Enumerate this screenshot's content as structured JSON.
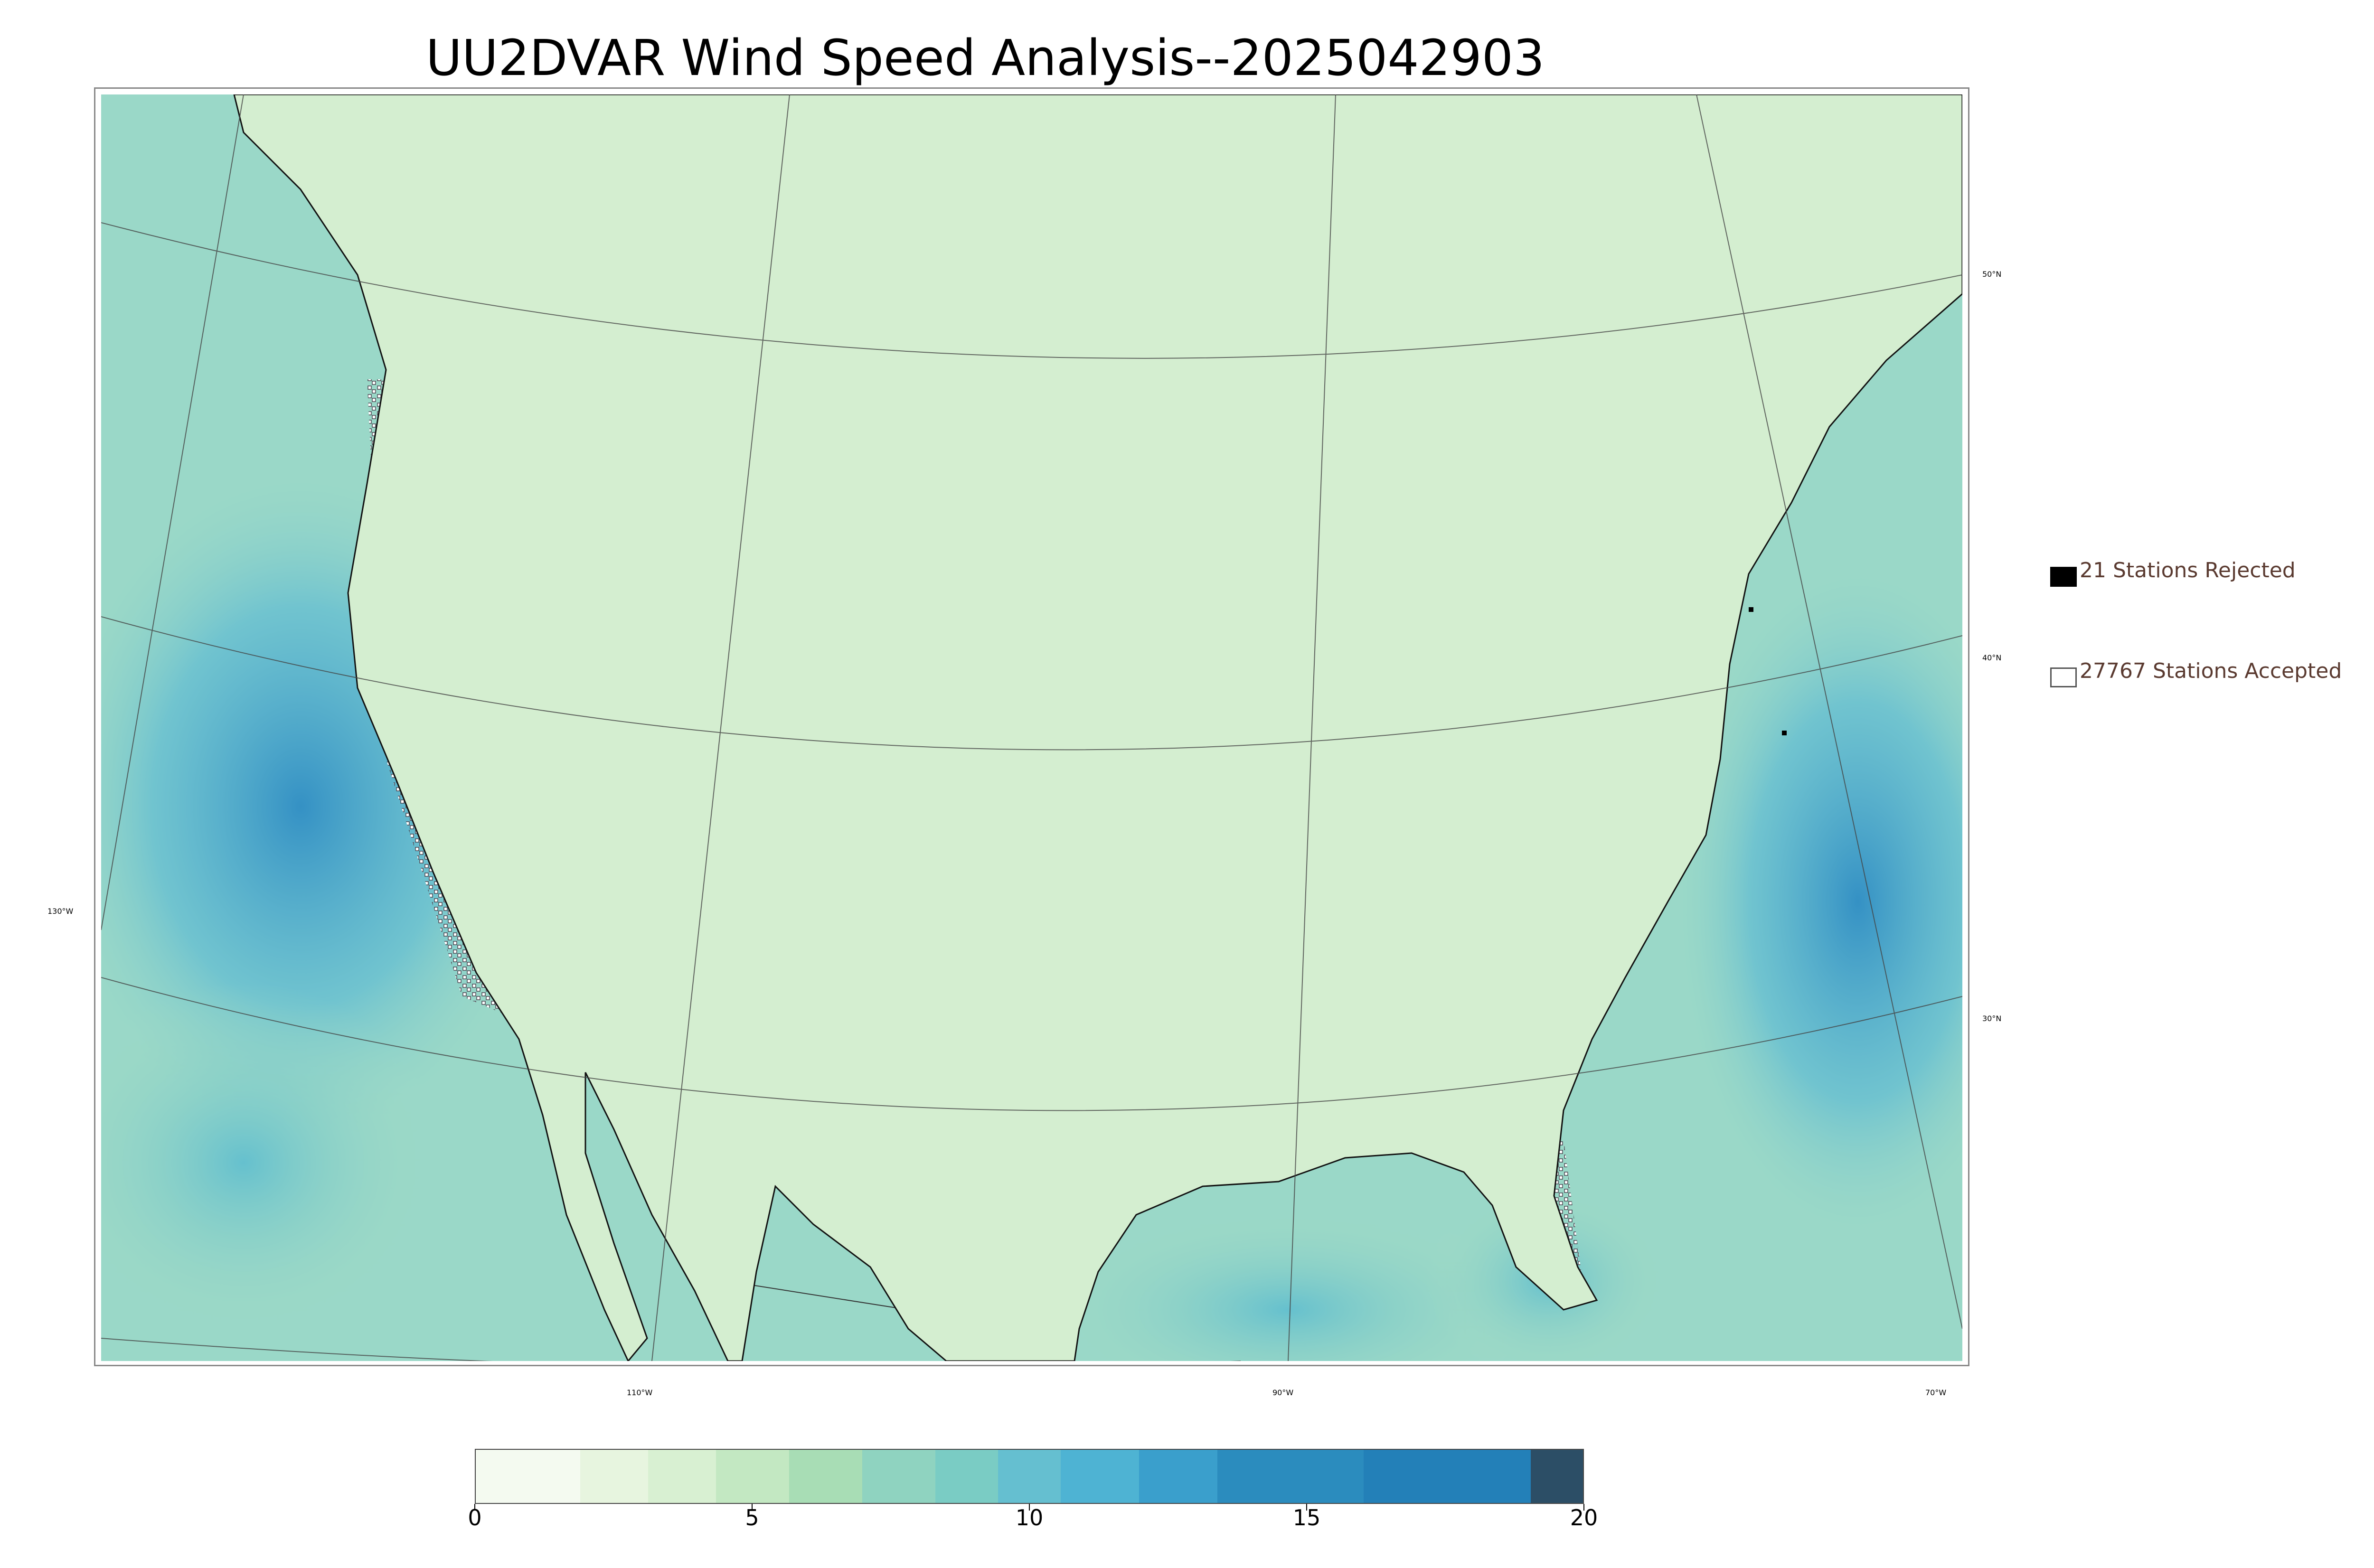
{
  "title": "UU2DVAR Wind Speed Analysis--2025042903",
  "map": {
    "longitude_labels": [
      "130°W",
      "110°W",
      "90°W",
      "70°W"
    ],
    "latitude_labels": [
      "50°N",
      "40°N",
      "30°N"
    ],
    "colors": {
      "land_base": "#d6efd3",
      "ocean_base": "#8fd3c8",
      "coastline": "#111111",
      "border": "#333333",
      "gridline": "#444444",
      "high_wind": "#3f9fcf",
      "peak_wind": "#2a7bb8"
    }
  },
  "legend": {
    "rejected": {
      "label": "21 Stations Rejected",
      "count": 21,
      "swatch_color": "#000000"
    },
    "accepted": {
      "label": "27767 Stations Accepted",
      "count": 27767,
      "swatch_color": "#ffffff"
    }
  },
  "colorbar": {
    "min": 0,
    "max": 20,
    "tick_labels": [
      "0",
      "5",
      "10",
      "15",
      "20"
    ],
    "colors": [
      "#f4faf0",
      "#e7f5df",
      "#d8f0d2",
      "#c3e8c2",
      "#a8ddb5",
      "#8fd3c0",
      "#7accc4",
      "#65bfd0",
      "#4eb3d3",
      "#3a9fcc",
      "#2b8cbe",
      "#2380b8",
      "#2c4e66"
    ],
    "bounds": [
      0,
      1,
      2,
      3,
      4,
      5,
      6,
      7,
      8,
      9,
      10,
      11,
      12,
      13,
      14,
      15,
      16,
      17,
      18,
      19,
      20
    ]
  }
}
